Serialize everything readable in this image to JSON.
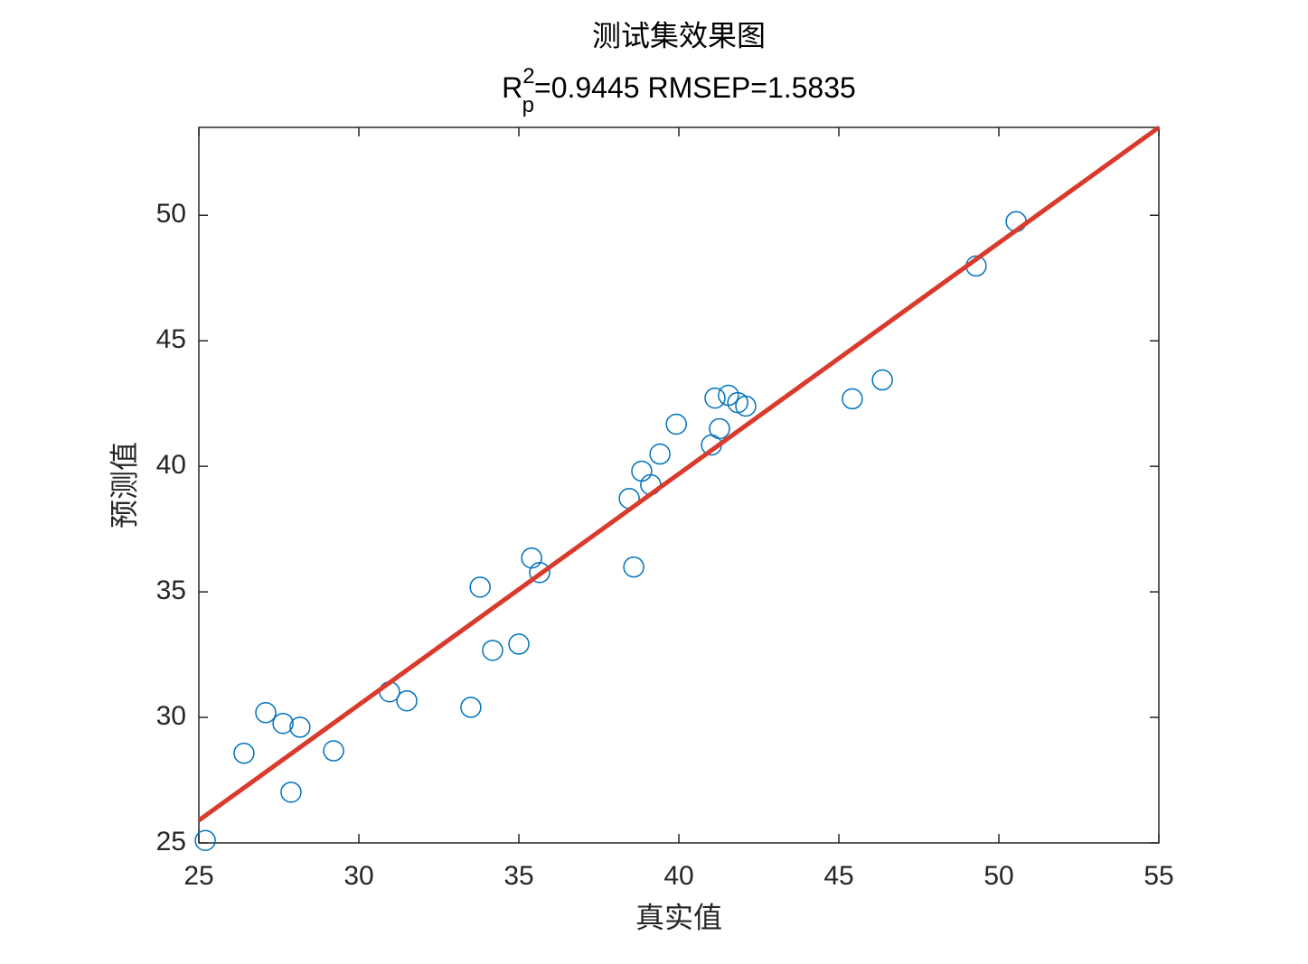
{
  "chart_data": {
    "type": "scatter",
    "title": "测试集效果图",
    "subtitle": {
      "base": "R",
      "sup": "2",
      "sub": "p",
      "rest": "=0.9445  RMSEP=1.5835"
    },
    "x_label": "真实值",
    "y_label": "预测值",
    "xlim": [
      25,
      55
    ],
    "ylim": [
      25,
      53.5
    ],
    "xticks": [
      25,
      30,
      35,
      40,
      45,
      50,
      55
    ],
    "yticks": [
      25,
      30,
      35,
      40,
      45,
      50
    ],
    "grid": false,
    "series": [
      {
        "color": "#0072bd",
        "x": [
          25.2,
          26.41,
          27.09,
          27.63,
          28.16,
          27.88,
          29.21,
          30.96,
          31.5,
          33.5,
          33.79,
          34.18,
          35.0,
          35.4,
          35.65,
          38.45,
          38.59,
          38.84,
          39.12,
          39.41,
          39.92,
          41.02,
          41.13,
          41.27,
          41.55,
          41.84,
          42.09,
          45.42,
          46.36,
          49.29,
          50.54
        ],
        "values": [
          25.1,
          28.57,
          30.19,
          29.76,
          29.61,
          27.02,
          28.67,
          31.02,
          30.66,
          30.4,
          35.19,
          32.67,
          32.92,
          36.35,
          35.77,
          38.72,
          35.99,
          39.81,
          39.27,
          40.49,
          41.68,
          40.85,
          42.72,
          41.5,
          42.83,
          42.54,
          42.4,
          42.69,
          43.44,
          47.98,
          49.75
        ]
      }
    ],
    "fit_line": {
      "color": "#d93a2b",
      "x": [
        25,
        55
      ],
      "values": [
        25.9,
        53.5
      ]
    }
  }
}
